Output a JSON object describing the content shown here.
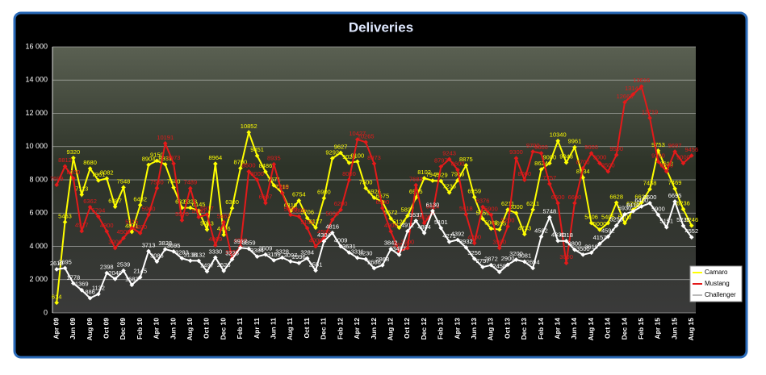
{
  "chart_data": {
    "type": "line",
    "title": "Deliveries",
    "categories": [
      "Apr 09",
      null,
      "Jun 09",
      null,
      "Aug 09",
      null,
      "Oct 09",
      null,
      "Dec 09",
      null,
      "Feb 10",
      null,
      "Apr 10",
      null,
      "Jun 10",
      null,
      "Aug 10",
      null,
      "Oct 10",
      null,
      "Dec 10",
      null,
      "Feb 11",
      null,
      "Apr 11",
      null,
      "Jun 11",
      null,
      "Aug 11",
      null,
      "Oct 11",
      null,
      "Dec 11",
      null,
      "Feb 12",
      null,
      "Apr 12",
      null,
      "Jun 12",
      null,
      "Aug 12",
      null,
      "Oct 12",
      null,
      "Dec 12",
      null,
      "Feb 13",
      null,
      "Apr 13",
      null,
      "Jun 13",
      null,
      "Aug 13",
      null,
      "Oct 13",
      null,
      "Dec 13",
      null,
      "Feb 14",
      null,
      "Apr 14",
      null,
      "Jun 14",
      null,
      "Aug 14",
      null,
      "Oct 14",
      null,
      "Dec 14",
      null,
      "Feb 15",
      null,
      "Apr 15",
      null,
      "Jun 15",
      null,
      "Aug 15"
    ],
    "series": [
      {
        "name": "Camaro",
        "color": "#ffff00",
        "values": [
          614,
          5463,
          9320,
          7113,
          8680,
          7961,
          8082,
          6387,
          7548,
          4871,
          6482,
          8904,
          9150,
          8931,
          7540,
          6321,
          6323,
          6145,
          5013,
          8964,
          4696,
          6300,
          8700,
          10852,
          9451,
          8486,
          7671,
          7219,
          6119,
          6754,
          5706,
          5127,
          6900,
          9292,
          9627,
          9023,
          9100,
          7500,
          6926,
          6675,
          5672,
          5122,
          5837,
          6925,
          8102,
          7949,
          7929,
          7236,
          7969,
          8875,
          6959,
          5659,
          5068,
          5015,
          6211,
          6000,
          4733,
          6211,
          8624,
          9000,
          10340,
          9043,
          9961,
          8134,
          5406,
          5000,
          5405,
          6628,
          5400,
          6200,
          6628,
          7438,
          9753,
          8613,
          7469,
          6236,
          5246
        ]
      },
      {
        "name": "Mustang",
        "color": "#e31a1a",
        "values": [
          7699,
          8812,
          8100,
          4917,
          6362,
          5794,
          4900,
          3900,
          4500,
          5115,
          4800,
          5900,
          7500,
          10191,
          8973,
          5570,
          7489,
          5760,
          5917,
          4069,
          5462,
          3290,
          4000,
          8500,
          8000,
          6607,
          8935,
          7200,
          5898,
          5800,
          5100,
          4000,
          4500,
          5600,
          6200,
          8000,
          10427,
          10265,
          8973,
          6300,
          4900,
          3700,
          3900,
          7683,
          5400,
          6024,
          8797,
          9243,
          8600,
          5918,
          4200,
          6376,
          5900,
          3900,
          5200,
          9300,
          8000,
          9700,
          9600,
          7757,
          6600,
          3000,
          6600,
          8700,
          9600,
          9000,
          8500,
          9500,
          12663,
          13144,
          13616,
          11719,
          9100,
          8500,
          9697,
          9000,
          9456
        ]
      },
      {
        "name": "Challenger",
        "color": "#ffffff",
        "values": [
          2619,
          2695,
          1778,
          1369,
          886,
          1132,
          2398,
          2040,
          2539,
          1683,
          2145,
          3713,
          3086,
          3828,
          3695,
          3283,
          3138,
          3132,
          2497,
          3330,
          2526,
          3225,
          3917,
          3859,
          3384,
          3509,
          3159,
          3328,
          3097,
          2996,
          3284,
          2551,
          4304,
          4816,
          4009,
          3631,
          3311,
          3230,
          2686,
          2868,
          3842,
          3497,
          4911,
          5537,
          4804,
          6130,
          5101,
          4271,
          4392,
          3932,
          3256,
          2757,
          2872,
          2458,
          2900,
          3200,
          3081,
          2694,
          4582,
          5748,
          4331,
          4318,
          3800,
          3500,
          3619,
          4157,
          4592,
          5255,
          5930,
          6110,
          6400,
          6600,
          5900,
          5151,
          6695,
          5235,
          4552
        ]
      }
    ],
    "ylim": [
      0,
      16000
    ],
    "yticks": [
      0,
      {
        "value": 2000,
        "label": "2 000"
      },
      {
        "value": 4000,
        "label": "4 000"
      },
      {
        "value": 6000,
        "label": "6 000"
      },
      {
        "value": 8000,
        "label": "8 000"
      },
      {
        "value": 10000,
        "label": "10 000"
      },
      {
        "value": 12000,
        "label": "12 000"
      },
      {
        "value": 14000,
        "label": "14 000"
      },
      {
        "value": 16000,
        "label": "16 000"
      }
    ],
    "grid": true,
    "legend": "right"
  }
}
